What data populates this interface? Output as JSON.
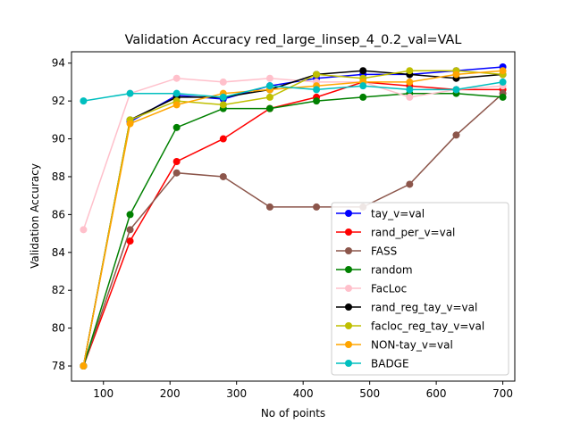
{
  "chart_data": {
    "type": "line",
    "title": "Validation Accuracy red_large_linsep_4_0.2_val=VAL",
    "xlabel": "No of points",
    "ylabel": "Validation Accuracy",
    "xlim": [
      52,
      718
    ],
    "ylim": [
      77.2,
      94.6
    ],
    "xticks": [
      100,
      200,
      300,
      400,
      500,
      600,
      700
    ],
    "yticks": [
      78,
      80,
      82,
      84,
      86,
      88,
      90,
      92,
      94
    ],
    "grid": false,
    "legend_position": "lower-right",
    "x": [
      70,
      140,
      210,
      280,
      350,
      420,
      490,
      560,
      630,
      700
    ],
    "series": [
      {
        "name": "tay_v=val",
        "color": "#0000ff",
        "values": [
          78.0,
          90.9,
          92.3,
          92.1,
          92.8,
          93.2,
          93.4,
          93.4,
          93.6,
          93.8
        ]
      },
      {
        "name": "rand_per_v=val",
        "color": "#ff0000",
        "values": [
          78.0,
          84.6,
          88.8,
          90.0,
          91.6,
          92.2,
          93.0,
          92.8,
          92.6,
          92.6
        ]
      },
      {
        "name": "FASS",
        "color": "#8c564b",
        "values": [
          78.0,
          85.2,
          88.2,
          88.0,
          86.4,
          86.4,
          86.4,
          87.6,
          90.2,
          92.4
        ]
      },
      {
        "name": "random",
        "color": "#008000",
        "values": [
          78.0,
          86.0,
          90.6,
          91.6,
          91.6,
          92.0,
          92.2,
          92.4,
          92.4,
          92.2
        ]
      },
      {
        "name": "FacLoc",
        "color": "#ffc0cb",
        "values": [
          85.2,
          92.4,
          93.2,
          93.0,
          93.2,
          93.0,
          93.0,
          92.2,
          92.6,
          92.8
        ]
      },
      {
        "name": "rand_reg_tay_v=val",
        "color": "#000000",
        "values": [
          78.0,
          91.0,
          92.2,
          92.2,
          92.6,
          93.4,
          93.6,
          93.4,
          93.2,
          93.4
        ]
      },
      {
        "name": "facloc_reg_tay_v=val",
        "color": "#bfbf00",
        "values": [
          78.0,
          91.0,
          92.0,
          91.8,
          92.2,
          93.4,
          93.2,
          93.6,
          93.6,
          93.4
        ]
      },
      {
        "name": "NON-tay_v=val",
        "color": "#ffa500",
        "values": [
          78.0,
          90.8,
          91.8,
          92.4,
          92.6,
          92.8,
          93.0,
          93.0,
          93.4,
          93.6
        ]
      },
      {
        "name": "BADGE",
        "color": "#00bfbf",
        "values": [
          92.0,
          92.4,
          92.4,
          92.2,
          92.8,
          92.6,
          92.8,
          92.6,
          92.6,
          93.0
        ]
      }
    ]
  }
}
